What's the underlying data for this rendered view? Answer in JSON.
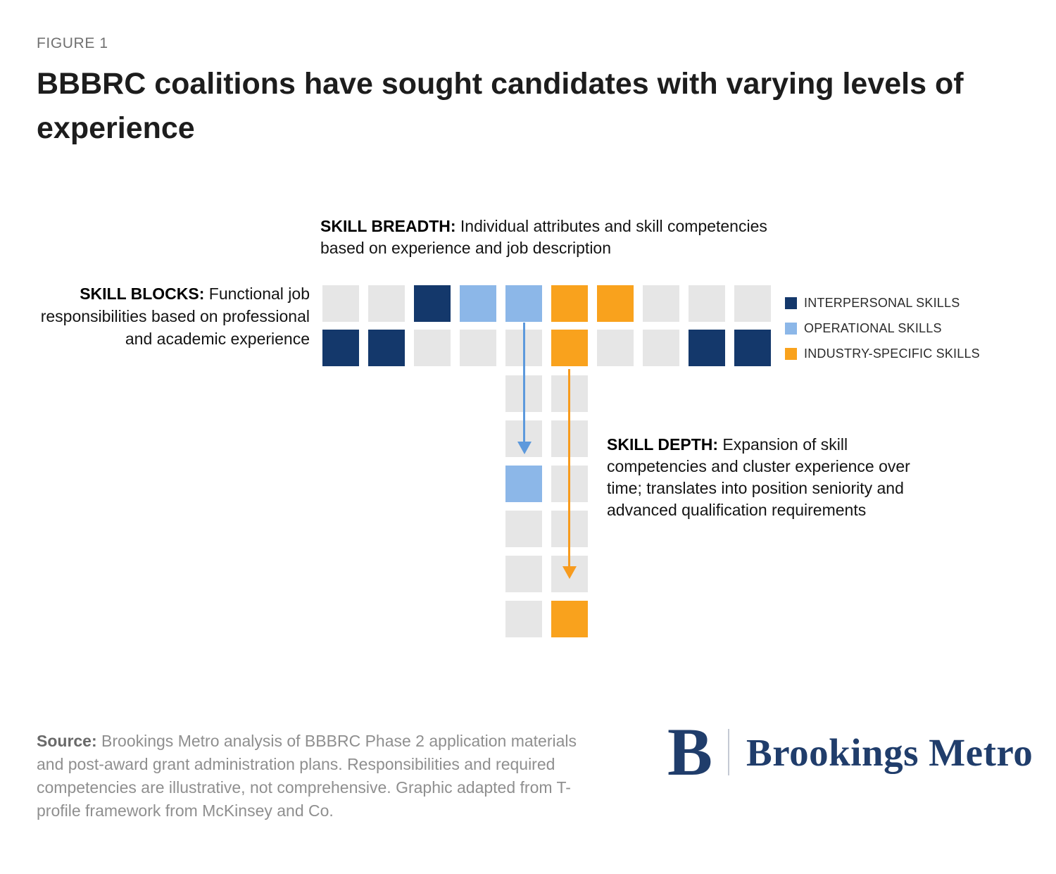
{
  "figure_label": "FIGURE 1",
  "title": "BBBRC coalitions have sought candidates with varying levels of experience",
  "annotations": {
    "skill_breadth": {
      "label": "SKILL BREADTH:",
      "text": "Individual attributes and skill competencies based on experience and job description"
    },
    "skill_blocks": {
      "label": "SKILL BLOCKS:",
      "text": "Functional job responsibilities based on professional and academic experience"
    },
    "skill_depth": {
      "label": "SKILL DEPTH:",
      "text": "Expansion of skill competencies and cluster experience over time; translates into position seniority and advanced qualification requirements"
    }
  },
  "legend": [
    {
      "label": "INTERPERSONAL SKILLS",
      "color_key": "interpersonal"
    },
    {
      "label": "OPERATIONAL SKILLS",
      "color_key": "operational"
    },
    {
      "label": "INDUSTRY-SPECIFIC SKILLS",
      "color_key": "industry"
    }
  ],
  "colors": {
    "empty": "#E6E6E6",
    "interpersonal": "#14386B",
    "operational": "#8CB7E8",
    "industry": "#F9A21D",
    "arrow_operational": "#5D99DC",
    "arrow_industry": "#F79B1E",
    "logo_navy": "#203D6B"
  },
  "diagram": {
    "type": "t-profile-grid",
    "breadth_rows": [
      [
        "empty",
        "empty",
        "interpersonal",
        "operational",
        "operational",
        "industry",
        "industry",
        "empty",
        "empty",
        "empty"
      ],
      [
        "interpersonal",
        "interpersonal",
        "empty",
        "empty",
        "empty",
        "industry",
        "empty",
        "empty",
        "interpersonal",
        "interpersonal"
      ]
    ],
    "depth_rows": [
      [
        "empty",
        "empty"
      ],
      [
        "empty",
        "empty"
      ],
      [
        "operational",
        "empty"
      ],
      [
        "empty",
        "empty"
      ],
      [
        "empty",
        "empty"
      ],
      [
        "empty",
        "industry"
      ]
    ],
    "arrows": [
      {
        "name": "operational-depth-arrow",
        "from": "breadth row 1, column 5",
        "to": "depth row 2, left column",
        "color_key": "arrow_operational"
      },
      {
        "name": "industry-depth-arrow",
        "from": "breadth row 2, column 6",
        "to": "depth row 5, right column",
        "color_key": "arrow_industry"
      }
    ]
  },
  "source": {
    "label": "Source:",
    "text": "Brookings Metro analysis of BBBRC Phase 2 application materials and post-award grant administration plans. Responsibilities and required competencies are illustrative, not comprehensive. Graphic adapted from T-profile framework from McKinsey and Co."
  },
  "logo": {
    "initial": "B",
    "name": "Brookings Metro"
  }
}
